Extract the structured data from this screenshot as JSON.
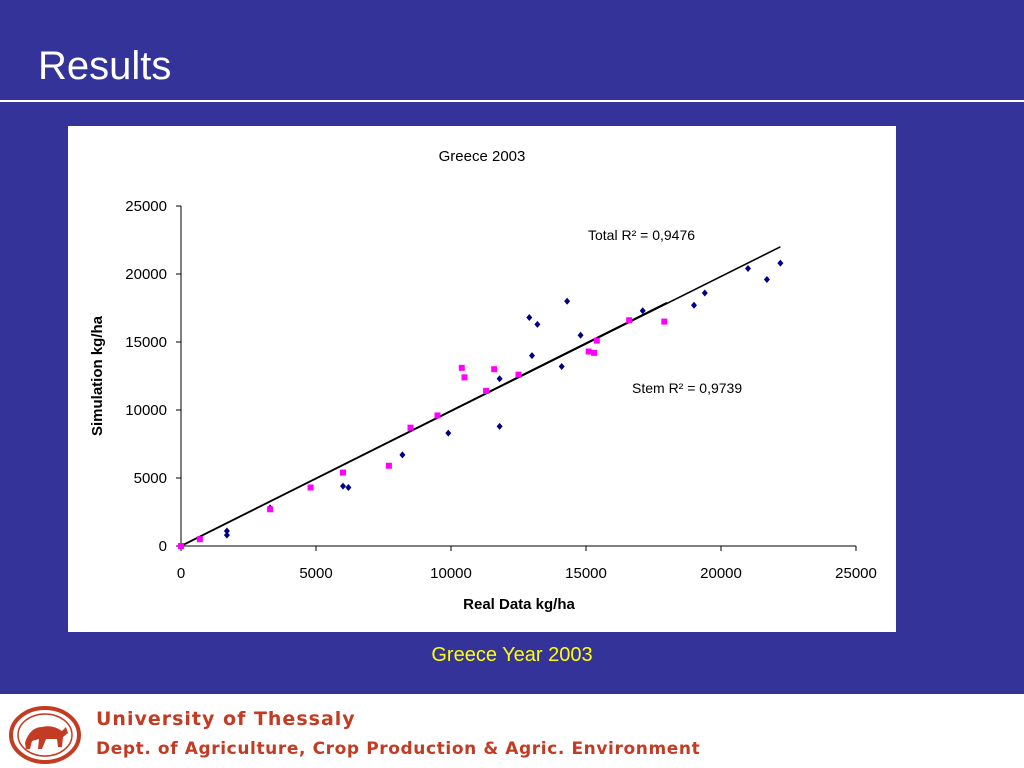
{
  "slide": {
    "title": "Results",
    "caption": "Greece Year 2003"
  },
  "footer": {
    "line1": "University of Thessaly",
    "line2": "Dept. of Agriculture, Crop Production & Agric. Environment",
    "color": "#c23b22"
  },
  "colors": {
    "background": "#333399",
    "caption": "#ffff00",
    "total_series": "#000080",
    "stem_series": "#ff00ff"
  },
  "chart_data": {
    "type": "scatter",
    "title": "Greece 2003",
    "xlabel": "Real Data kg/ha",
    "ylabel": "Simulation kg/ha",
    "xlim": [
      0,
      25000
    ],
    "ylim": [
      0,
      25000
    ],
    "xticks": [
      "0",
      "5000",
      "10000",
      "15000",
      "20000",
      "25000"
    ],
    "yticks": [
      "0",
      "5000",
      "10000",
      "15000",
      "20000",
      "25000"
    ],
    "grid": false,
    "annotations": {
      "total": "Total R² = 0,9476",
      "stem": "Stem R² = 0,9739"
    },
    "series": [
      {
        "color": "#000080",
        "marker": "diamond",
        "points": [
          [
            0,
            0
          ],
          [
            1700,
            1100
          ],
          [
            1700,
            800
          ],
          [
            3300,
            2800
          ],
          [
            6000,
            4400
          ],
          [
            6200,
            4300
          ],
          [
            8200,
            6700
          ],
          [
            9900,
            8300
          ],
          [
            11800,
            12300
          ],
          [
            11800,
            8800
          ],
          [
            12900,
            16800
          ],
          [
            13000,
            14000
          ],
          [
            13200,
            16300
          ],
          [
            14100,
            13200
          ],
          [
            14300,
            18000
          ],
          [
            14800,
            15500
          ],
          [
            17100,
            17300
          ],
          [
            19000,
            17700
          ],
          [
            19400,
            18600
          ],
          [
            21000,
            20400
          ],
          [
            21700,
            19600
          ],
          [
            22200,
            20800
          ]
        ],
        "trendline": [
          [
            0,
            0
          ],
          [
            22200,
            22000
          ]
        ]
      },
      {
        "color": "#ff00ff",
        "marker": "square",
        "points": [
          [
            0,
            0
          ],
          [
            700,
            500
          ],
          [
            3300,
            2700
          ],
          [
            4800,
            4300
          ],
          [
            6000,
            5400
          ],
          [
            7700,
            5900
          ],
          [
            8500,
            8700
          ],
          [
            9500,
            9600
          ],
          [
            10400,
            13100
          ],
          [
            10500,
            12400
          ],
          [
            11300,
            11400
          ],
          [
            11600,
            13000
          ],
          [
            12500,
            12600
          ],
          [
            15100,
            14300
          ],
          [
            15300,
            14200
          ],
          [
            15400,
            15100
          ],
          [
            16600,
            16600
          ],
          [
            17900,
            16500
          ]
        ],
        "trendline": [
          [
            0,
            0
          ],
          [
            18000,
            17900
          ]
        ]
      }
    ]
  }
}
